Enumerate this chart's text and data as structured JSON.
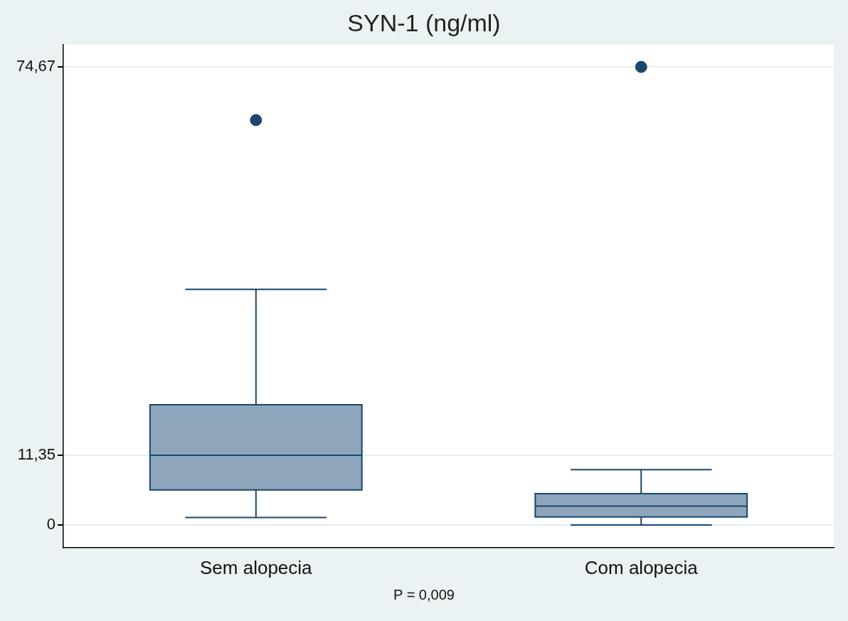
{
  "chart_data": {
    "type": "box",
    "title": "SYN-1 (ng/ml)",
    "categories": [
      "Sem alopecia",
      "Com alopecia"
    ],
    "color": "#8ea6bb",
    "boxes": [
      {
        "low": 1.2,
        "q1": 5.7,
        "median": 11.35,
        "q3": 19.6,
        "high": 38.4,
        "outliers": [
          66.0
        ]
      },
      {
        "low": 0,
        "q1": 1.3,
        "median": 3.05,
        "q3": 5.1,
        "high": 9.0,
        "outliers": [
          74.67
        ]
      }
    ],
    "ylim": [
      -3.7,
      78.3
    ],
    "yticks": [
      0,
      {
        "value": 11.35,
        "label": "11,35"
      },
      {
        "value": 74.67,
        "label": "74,67"
      }
    ],
    "grid": "y",
    "annotations": [
      "P = 0,009"
    ]
  }
}
